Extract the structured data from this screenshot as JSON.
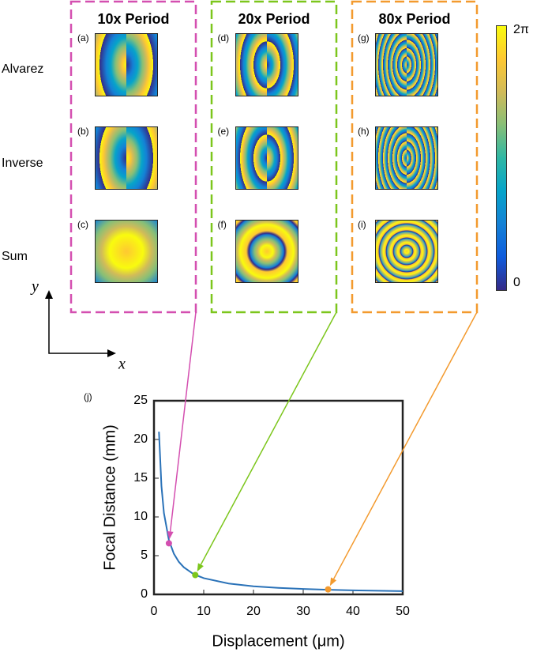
{
  "figure": {
    "column_titles": [
      "10x Period",
      "20x Period",
      "80x Period"
    ],
    "column_colors": [
      "#d44fb0",
      "#7cc61c",
      "#f39a2e"
    ],
    "row_labels": [
      "Alvarez",
      "Inverse",
      "Sum"
    ],
    "panel_labels": [
      [
        "(a)",
        "(b)",
        "(c)"
      ],
      [
        "(d)",
        "(e)",
        "(f)"
      ],
      [
        "(g)",
        "(h)",
        "(i)"
      ]
    ],
    "colorbar": {
      "max_label": "2π",
      "min_label": "0"
    },
    "axis_sketch": {
      "x_label": "x",
      "y_label": "y"
    }
  },
  "chart_data": {
    "type": "line",
    "panel_label": "(j)",
    "xlabel": "Displacement (μm)",
    "ylabel": "Focal Distance (mm)",
    "x": [
      1,
      1.5,
      2,
      3,
      4,
      5,
      6,
      8,
      10,
      15,
      20,
      25,
      30,
      35,
      40,
      45,
      50
    ],
    "series": [
      {
        "color": "#2a72b8",
        "values": [
          21,
          14,
          10.5,
          7,
          5.25,
          4.2,
          3.5,
          2.6,
          2.1,
          1.4,
          1.05,
          0.84,
          0.7,
          0.6,
          0.52,
          0.47,
          0.42
        ]
      }
    ],
    "xlim": [
      0,
      50
    ],
    "ylim": [
      0,
      25
    ],
    "xticks": [
      0,
      10,
      20,
      30,
      40,
      50
    ],
    "yticks": [
      0,
      5,
      10,
      15,
      20,
      25
    ],
    "highlights": {
      "x": [
        3,
        8.3,
        35
      ],
      "y": [
        6.6,
        2.5,
        0.65
      ],
      "colors": [
        "#d44fb0",
        "#7cc61c",
        "#f39a2e"
      ]
    }
  }
}
